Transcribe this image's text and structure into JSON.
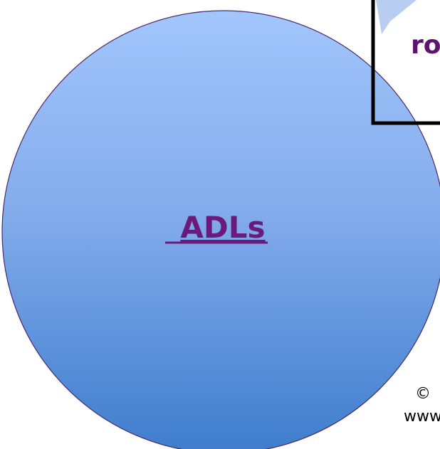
{
  "circle": {
    "label": "ADLs"
  },
  "box": {
    "text": "ro"
  },
  "footer": {
    "copyright": "©",
    "website": "www"
  }
}
